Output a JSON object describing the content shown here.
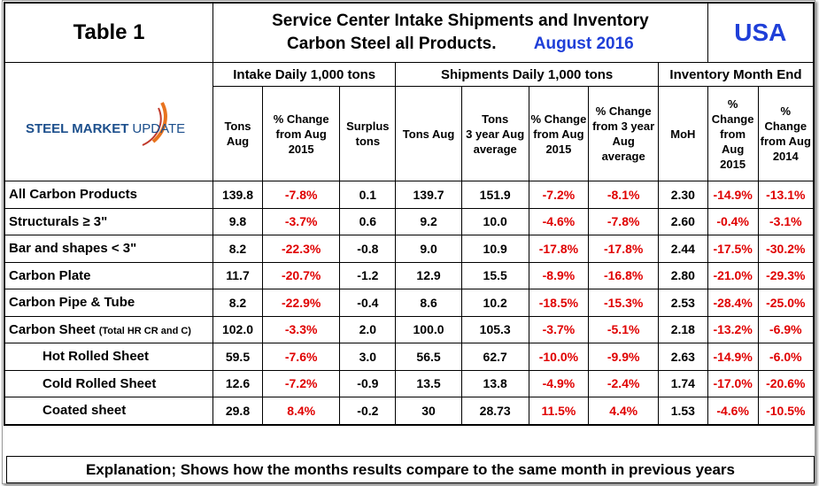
{
  "header": {
    "table_label": "Table 1",
    "title_line1": "Service Center Intake Shipments and Inventory",
    "title_line2": "Carbon Steel all Products.",
    "title_date": "August 2016",
    "region": "USA"
  },
  "logo": {
    "bold": "STEEL MARKET",
    "light": "UPDATE"
  },
  "table": {
    "groups": [
      "Intake Daily 1,000 tons",
      "Shipments Daily 1,000 tons",
      "Inventory Month End"
    ],
    "columns": [
      [
        "Tons Aug"
      ],
      [
        "% Change",
        "from Aug",
        "2015"
      ],
      [
        "Surplus",
        "tons"
      ],
      [
        "Tons Aug"
      ],
      [
        "Tons",
        "3 year Aug",
        "average"
      ],
      [
        "% Change",
        "from Aug",
        "2015"
      ],
      [
        "% Change",
        "from 3 year",
        "Aug",
        "average"
      ],
      [
        "MoH"
      ],
      [
        "%",
        "Change",
        "from",
        "Aug",
        "2015"
      ],
      [
        "%",
        "Change",
        "from Aug",
        "2014"
      ]
    ],
    "rows": [
      {
        "label": "All Carbon Products",
        "values": [
          "139.8",
          "-7.8%",
          "0.1",
          "139.7",
          "151.9",
          "-7.2%",
          "-8.1%",
          "2.30",
          "-14.9%",
          "-13.1%"
        ]
      },
      {
        "label": "Structurals ≥ 3\"",
        "values": [
          "9.8",
          "-3.7%",
          "0.6",
          "9.2",
          "10.0",
          "-4.6%",
          "-7.8%",
          "2.60",
          "-0.4%",
          "-3.1%"
        ]
      },
      {
        "label": "Bar and shapes < 3\"",
        "values": [
          "8.2",
          "-22.3%",
          "-0.8",
          "9.0",
          "10.9",
          "-17.8%",
          "-17.8%",
          "2.44",
          "-17.5%",
          "-30.2%"
        ]
      },
      {
        "label": "Carbon Plate",
        "values": [
          "11.7",
          "-20.7%",
          "-1.2",
          "12.9",
          "15.5",
          "-8.9%",
          "-16.8%",
          "2.80",
          "-21.0%",
          "-29.3%"
        ]
      },
      {
        "label": "Carbon Pipe & Tube",
        "values": [
          "8.2",
          "-22.9%",
          "-0.4",
          "8.6",
          "10.2",
          "-18.5%",
          "-15.3%",
          "2.53",
          "-28.4%",
          "-25.0%"
        ]
      },
      {
        "label": "Carbon Sheet",
        "note": "(Total HR CR and C)",
        "values": [
          "102.0",
          "-3.3%",
          "2.0",
          "100.0",
          "105.3",
          "-3.7%",
          "-5.1%",
          "2.18",
          "-13.2%",
          "-6.9%"
        ]
      },
      {
        "label": "Hot Rolled Sheet",
        "values": [
          "59.5",
          "-7.6%",
          "3.0",
          "56.5",
          "62.7",
          "-10.0%",
          "-9.9%",
          "2.63",
          "-14.9%",
          "-6.0%"
        ]
      },
      {
        "label": "Cold Rolled Sheet",
        "values": [
          "12.6",
          "-7.2%",
          "-0.9",
          "13.5",
          "13.8",
          "-4.9%",
          "-2.4%",
          "1.74",
          "-17.0%",
          "-20.6%"
        ]
      },
      {
        "label": "Coated sheet",
        "values": [
          "29.8",
          "8.4%",
          "-0.2",
          "30",
          "28.73",
          "11.5%",
          "4.4%",
          "1.53",
          "-4.6%",
          "-10.5%"
        ]
      }
    ]
  },
  "footer": {
    "explanation": "Explanation; Shows how the months results compare to the same month in previous years"
  }
}
